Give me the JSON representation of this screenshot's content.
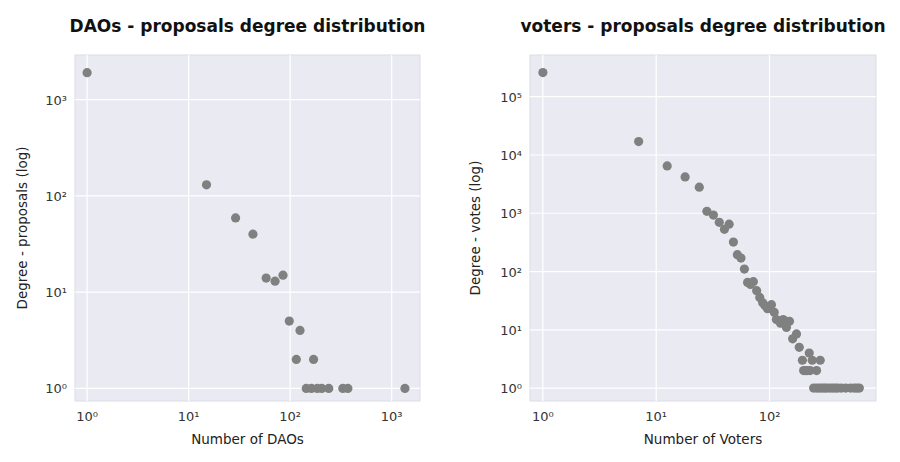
{
  "chart_data": [
    {
      "type": "scatter",
      "title": "DAOs - proposals degree distribution",
      "x_label": "Number of DAOs",
      "y_label": "Degree - proposals (log)",
      "x": [
        1,
        15,
        29,
        43,
        58,
        71,
        85,
        98,
        115,
        125,
        144,
        162,
        170,
        185,
        205,
        240,
        330,
        370,
        1350
      ],
      "values": [
        1900,
        130,
        59,
        40,
        14,
        13,
        15,
        5,
        2,
        4,
        1,
        1,
        2,
        1,
        1,
        1,
        1,
        1,
        1
      ],
      "color": "#808080",
      "marker": "circle",
      "log": true,
      "grid": true,
      "xlim": [
        0.76,
        1900
      ],
      "ylim": [
        0.74,
        2900
      ],
      "xticks": [
        {
          "value": 1,
          "label": "10⁰"
        },
        {
          "value": 10,
          "label": "10¹"
        },
        {
          "value": 100,
          "label": "10²"
        },
        {
          "value": 1000,
          "label": "10³"
        }
      ],
      "yticks": [
        {
          "value": 1,
          "label": "10⁰"
        },
        {
          "value": 10,
          "label": "10¹"
        },
        {
          "value": 100,
          "label": "10²"
        },
        {
          "value": 1000,
          "label": "10³"
        }
      ]
    },
    {
      "type": "scatter",
      "title": "voters - proposals degree distribution",
      "x_label": "Number of Voters",
      "y_label": "Degree - votes (log)",
      "x": [
        1,
        7,
        12.5,
        18,
        24,
        28,
        32,
        36,
        40,
        44,
        48,
        52,
        56,
        60,
        64,
        68,
        72,
        77,
        82,
        87,
        91,
        96,
        104,
        110,
        115,
        125,
        132,
        141,
        150,
        160,
        173,
        183,
        195,
        208,
        224,
        238,
        260,
        280,
        200,
        215,
        228,
        245,
        260,
        275,
        290,
        305,
        320,
        340,
        360,
        380,
        400,
        430,
        470,
        520,
        560,
        590,
        620
      ],
      "values": [
        260000,
        17000,
        6500,
        4200,
        2800,
        1080,
        930,
        700,
        530,
        650,
        320,
        195,
        170,
        110,
        65,
        60,
        67,
        47,
        36,
        29,
        26,
        23,
        27,
        20,
        15,
        13,
        15,
        11,
        14,
        7,
        8.5,
        5,
        3,
        2,
        4,
        3,
        2,
        3,
        2,
        2,
        2,
        1,
        1,
        1,
        1,
        1,
        1,
        1,
        1,
        1,
        1,
        1,
        1,
        1,
        1,
        1,
        1
      ],
      "color": "#808080",
      "marker": "circle",
      "log": true,
      "grid": true,
      "xlim": [
        0.77,
        870
      ],
      "ylim": [
        0.6,
        520000
      ],
      "xticks": [
        {
          "value": 1,
          "label": "10⁰"
        },
        {
          "value": 10,
          "label": "10¹"
        },
        {
          "value": 100,
          "label": "10²"
        }
      ],
      "yticks": [
        {
          "value": 1,
          "label": "10⁰"
        },
        {
          "value": 10,
          "label": "10¹"
        },
        {
          "value": 100,
          "label": "10²"
        },
        {
          "value": 1000,
          "label": "10³"
        },
        {
          "value": 10000,
          "label": "10⁴"
        },
        {
          "value": 100000,
          "label": "10⁵"
        }
      ]
    }
  ]
}
